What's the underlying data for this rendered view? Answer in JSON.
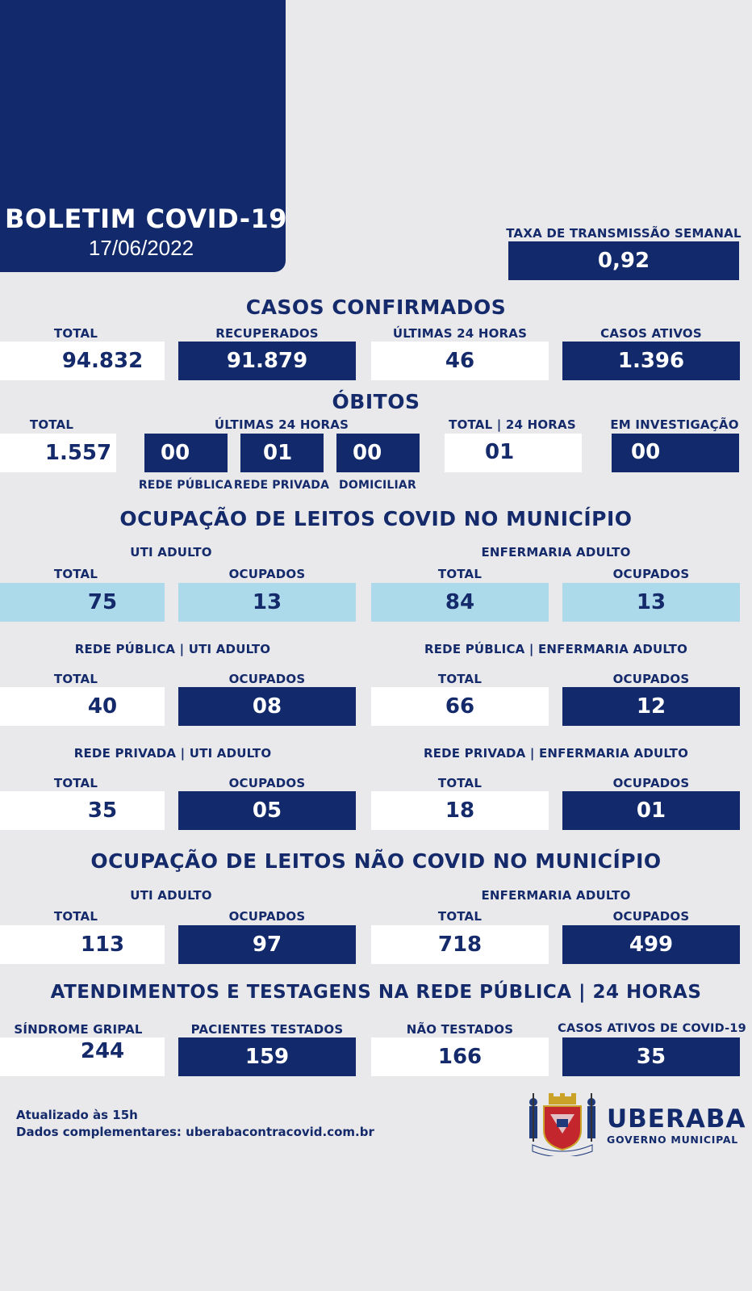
{
  "header": {
    "title": "BOLETIM COVID-19",
    "date": "17/06/2022"
  },
  "transmission": {
    "label": "TAXA DE TRANSMISSÃO SEMANAL",
    "value": "0,92"
  },
  "cases": {
    "title": "CASOS CONFIRMADOS",
    "items": [
      {
        "label": "TOTAL",
        "value": "94.832"
      },
      {
        "label": "RECUPERADOS",
        "value": "91.879"
      },
      {
        "label": "ÚLTIMAS 24 HORAS",
        "value": "46"
      },
      {
        "label": "CASOS ATIVOS",
        "value": "1.396"
      }
    ]
  },
  "deaths": {
    "title": "ÓBITOS",
    "total_label": "TOTAL",
    "total_value": "1.557",
    "last24_label": "ÚLTIMAS 24 HORAS",
    "last24": [
      {
        "label": "REDE PÚBLICA",
        "value": "00"
      },
      {
        "label": "REDE PRIVADA",
        "value": "01"
      },
      {
        "label": "DOMICILIAR",
        "value": "00"
      }
    ],
    "total24_label": "TOTAL | 24 HORAS",
    "total24_value": "01",
    "investigation_label": "EM INVESTIGAÇÃO",
    "investigation_value": "00"
  },
  "covid_beds": {
    "title": "OCUPAÇÃO DE LEITOS COVID NO MUNICÍPIO",
    "groups": [
      {
        "label": "UTI ADULTO"
      },
      {
        "label": "ENFERMARIA ADULTO"
      },
      {
        "label": "REDE PÚBLICA | UTI ADULTO"
      },
      {
        "label": "REDE PÚBLICA | ENFERMARIA ADULTO"
      },
      {
        "label": "REDE PRIVADA | UTI ADULTO"
      },
      {
        "label": "REDE PRIVADA | ENFERMARIA ADULTO"
      }
    ],
    "total_label": "TOTAL",
    "occupied_label": "OCUPADOS",
    "rows": [
      [
        "75",
        "13",
        "84",
        "13"
      ],
      [
        "40",
        "08",
        "66",
        "12"
      ],
      [
        "35",
        "05",
        "18",
        "01"
      ]
    ]
  },
  "non_covid_beds": {
    "title": "OCUPAÇÃO DE LEITOS NÃO COVID NO MUNICÍPIO",
    "uti_label": "UTI ADULTO",
    "ward_label": "ENFERMARIA ADULTO",
    "values": [
      "113",
      "97",
      "718",
      "499"
    ]
  },
  "tests": {
    "title": "ATENDIMENTOS E TESTAGENS NA REDE PÚBLICA | 24 HORAS",
    "items": [
      {
        "label": "SÍNDROME GRIPAL",
        "value": "244"
      },
      {
        "label": "PACIENTES TESTADOS",
        "value": "159"
      },
      {
        "label": "NÃO TESTADOS",
        "value": "166"
      },
      {
        "label": "CASOS ATIVOS DE COVID-19",
        "value": "35"
      }
    ]
  },
  "footer": {
    "updated": "Atualizado às 15h",
    "data_info": "Dados complementares: uberabacontracovid.com.br",
    "city": "UBERABA",
    "gov": "GOVERNO MUNICIPAL"
  },
  "colors": {
    "navy": "#122a6b",
    "light_blue": "#acdaea",
    "background": "#e9e9eb"
  }
}
